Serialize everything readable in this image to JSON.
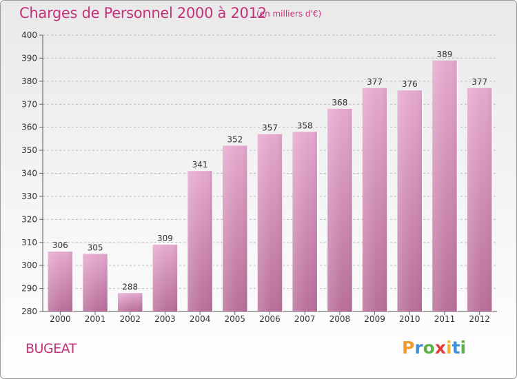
{
  "header": {
    "title": "Charges de Personnel 2000 à 2012",
    "subtitle": "(en milliers d'€)"
  },
  "footer": {
    "commune": "BUGEAT",
    "brand": "Proxiti",
    "brand_letters": [
      {
        "ch": "P",
        "color": "#f39c2a"
      },
      {
        "ch": "r",
        "color": "#3f8fd6"
      },
      {
        "ch": "o",
        "color": "#5bb146"
      },
      {
        "ch": "x",
        "color": "#e23d3d"
      },
      {
        "ch": "i",
        "color": "#f3b82a"
      },
      {
        "ch": "t",
        "color": "#3f8fd6"
      },
      {
        "ch": "i",
        "color": "#5bb146"
      }
    ]
  },
  "colors": {
    "accent": "#c5317a",
    "bar_top": "#e6a8cf",
    "bar_bottom": "#b86f9a",
    "grid": "#bbbbbb",
    "axis_text": "#333333"
  },
  "chart_data": {
    "type": "bar",
    "categories": [
      "2000",
      "2001",
      "2002",
      "2003",
      "2004",
      "2005",
      "2006",
      "2007",
      "2008",
      "2009",
      "2010",
      "2011",
      "2012"
    ],
    "values": [
      306,
      305,
      288,
      309,
      341,
      352,
      357,
      358,
      368,
      377,
      376,
      389,
      377
    ],
    "data_labels": [
      "306",
      "305",
      "288",
      "309",
      "341",
      "352",
      "357",
      "358",
      "368",
      "377",
      "376",
      "389",
      "377"
    ],
    "title": "Charges de Personnel 2000 à 2012",
    "subtitle": "(en milliers d'€)",
    "xlabel": "",
    "ylabel": "",
    "ylim": [
      280,
      400
    ],
    "yticks": [
      280,
      290,
      300,
      310,
      320,
      330,
      340,
      350,
      360,
      370,
      380,
      390,
      400
    ],
    "grid": true,
    "legend": "none"
  }
}
